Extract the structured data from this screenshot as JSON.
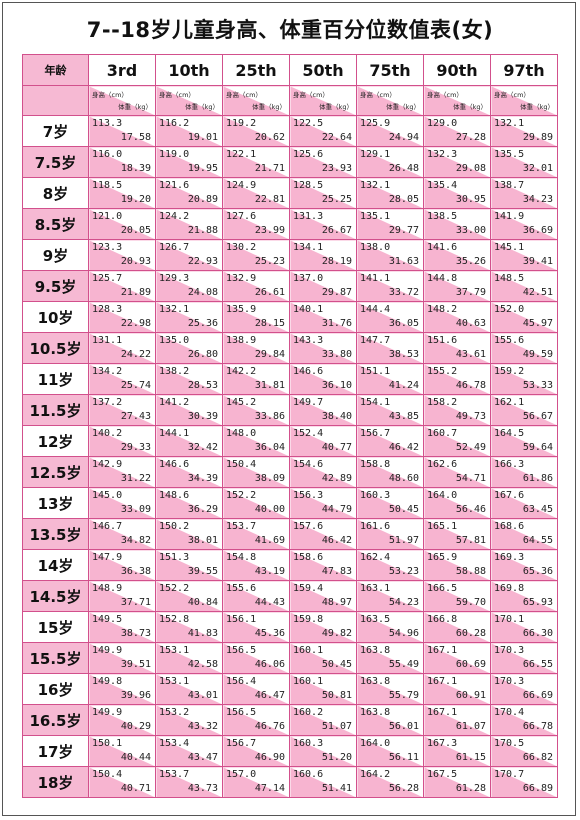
{
  "title": "7--18岁儿童身高、体重百分位数值表(女)",
  "age_header": "年龄",
  "percentiles": [
    "3rd",
    "10th",
    "25th",
    "50th",
    "75th",
    "90th",
    "97th"
  ],
  "sub_header": {
    "height": "身高（cm）",
    "weight": "体重（kg）"
  },
  "rows": [
    {
      "age": "7岁",
      "cells": [
        [
          "113.3",
          "17.58"
        ],
        [
          "116.2",
          "19.01"
        ],
        [
          "119.2",
          "20.62"
        ],
        [
          "122.5",
          "22.64"
        ],
        [
          "125.9",
          "24.94"
        ],
        [
          "129.0",
          "27.28"
        ],
        [
          "132.1",
          "29.89"
        ]
      ]
    },
    {
      "age": "7.5岁",
      "cells": [
        [
          "116.0",
          "18.39"
        ],
        [
          "119.0",
          "19.95"
        ],
        [
          "122.1",
          "21.71"
        ],
        [
          "125.6",
          "23.93"
        ],
        [
          "129.1",
          "26.48"
        ],
        [
          "132.3",
          "29.08"
        ],
        [
          "135.5",
          "32.01"
        ]
      ]
    },
    {
      "age": "8岁",
      "cells": [
        [
          "118.5",
          "19.20"
        ],
        [
          "121.6",
          "20.89"
        ],
        [
          "124.9",
          "22.81"
        ],
        [
          "128.5",
          "25.25"
        ],
        [
          "132.1",
          "28.05"
        ],
        [
          "135.4",
          "30.95"
        ],
        [
          "138.7",
          "34.23"
        ]
      ]
    },
    {
      "age": "8.5岁",
      "cells": [
        [
          "121.0",
          "20.05"
        ],
        [
          "124.2",
          "21.88"
        ],
        [
          "127.6",
          "23.99"
        ],
        [
          "131.3",
          "26.67"
        ],
        [
          "135.1",
          "29.77"
        ],
        [
          "138.5",
          "33.00"
        ],
        [
          "141.9",
          "36.69"
        ]
      ]
    },
    {
      "age": "9岁",
      "cells": [
        [
          "123.3",
          "20.93"
        ],
        [
          "126.7",
          "22.93"
        ],
        [
          "130.2",
          "25.23"
        ],
        [
          "134.1",
          "28.19"
        ],
        [
          "138.0",
          "31.63"
        ],
        [
          "141.6",
          "35.26"
        ],
        [
          "145.1",
          "39.41"
        ]
      ]
    },
    {
      "age": "9.5岁",
      "cells": [
        [
          "125.7",
          "21.89"
        ],
        [
          "129.3",
          "24.08"
        ],
        [
          "132.9",
          "26.61"
        ],
        [
          "137.0",
          "29.87"
        ],
        [
          "141.1",
          "33.72"
        ],
        [
          "144.8",
          "37.79"
        ],
        [
          "148.5",
          "42.51"
        ]
      ]
    },
    {
      "age": "10岁",
      "cells": [
        [
          "128.3",
          "22.98"
        ],
        [
          "132.1",
          "25.36"
        ],
        [
          "135.9",
          "28.15"
        ],
        [
          "140.1",
          "31.76"
        ],
        [
          "144.4",
          "36.05"
        ],
        [
          "148.2",
          "40.63"
        ],
        [
          "152.0",
          "45.97"
        ]
      ]
    },
    {
      "age": "10.5岁",
      "cells": [
        [
          "131.1",
          "24.22"
        ],
        [
          "135.0",
          "26.80"
        ],
        [
          "138.9",
          "29.84"
        ],
        [
          "143.3",
          "33.80"
        ],
        [
          "147.7",
          "38.53"
        ],
        [
          "151.6",
          "43.61"
        ],
        [
          "155.6",
          "49.59"
        ]
      ]
    },
    {
      "age": "11岁",
      "cells": [
        [
          "134.2",
          "25.74"
        ],
        [
          "138.2",
          "28.53"
        ],
        [
          "142.2",
          "31.81"
        ],
        [
          "146.6",
          "36.10"
        ],
        [
          "151.1",
          "41.24"
        ],
        [
          "155.2",
          "46.78"
        ],
        [
          "159.2",
          "53.33"
        ]
      ]
    },
    {
      "age": "11.5岁",
      "cells": [
        [
          "137.2",
          "27.43"
        ],
        [
          "141.2",
          "30.39"
        ],
        [
          "145.2",
          "33.86"
        ],
        [
          "149.7",
          "38.40"
        ],
        [
          "154.1",
          "43.85"
        ],
        [
          "158.2",
          "49.73"
        ],
        [
          "162.1",
          "56.67"
        ]
      ]
    },
    {
      "age": "12岁",
      "cells": [
        [
          "140.2",
          "29.33"
        ],
        [
          "144.1",
          "32.42"
        ],
        [
          "148.0",
          "36.04"
        ],
        [
          "152.4",
          "40.77"
        ],
        [
          "156.7",
          "46.42"
        ],
        [
          "160.7",
          "52.49"
        ],
        [
          "164.5",
          "59.64"
        ]
      ]
    },
    {
      "age": "12.5岁",
      "cells": [
        [
          "142.9",
          "31.22"
        ],
        [
          "146.6",
          "34.39"
        ],
        [
          "150.4",
          "38.09"
        ],
        [
          "154.6",
          "42.89"
        ],
        [
          "158.8",
          "48.60"
        ],
        [
          "162.6",
          "54.71"
        ],
        [
          "166.3",
          "61.86"
        ]
      ]
    },
    {
      "age": "13岁",
      "cells": [
        [
          "145.0",
          "33.09"
        ],
        [
          "148.6",
          "36.29"
        ],
        [
          "152.2",
          "40.00"
        ],
        [
          "156.3",
          "44.79"
        ],
        [
          "160.3",
          "50.45"
        ],
        [
          "164.0",
          "56.46"
        ],
        [
          "167.6",
          "63.45"
        ]
      ]
    },
    {
      "age": "13.5岁",
      "cells": [
        [
          "146.7",
          "34.82"
        ],
        [
          "150.2",
          "38.01"
        ],
        [
          "153.7",
          "41.69"
        ],
        [
          "157.6",
          "46.42"
        ],
        [
          "161.6",
          "51.97"
        ],
        [
          "165.1",
          "57.81"
        ],
        [
          "168.6",
          "64.55"
        ]
      ]
    },
    {
      "age": "14岁",
      "cells": [
        [
          "147.9",
          "36.38"
        ],
        [
          "151.3",
          "39.55"
        ],
        [
          "154.8",
          "43.19"
        ],
        [
          "158.6",
          "47.83"
        ],
        [
          "162.4",
          "53.23"
        ],
        [
          "165.9",
          "58.88"
        ],
        [
          "169.3",
          "65.36"
        ]
      ]
    },
    {
      "age": "14.5岁",
      "cells": [
        [
          "148.9",
          "37.71"
        ],
        [
          "152.2",
          "40.84"
        ],
        [
          "155.6",
          "44.43"
        ],
        [
          "159.4",
          "48.97"
        ],
        [
          "163.1",
          "54.23"
        ],
        [
          "166.5",
          "59.70"
        ],
        [
          "169.8",
          "65.93"
        ]
      ]
    },
    {
      "age": "15岁",
      "cells": [
        [
          "149.5",
          "38.73"
        ],
        [
          "152.8",
          "41.83"
        ],
        [
          "156.1",
          "45.36"
        ],
        [
          "159.8",
          "49.82"
        ],
        [
          "163.5",
          "54.96"
        ],
        [
          "166.8",
          "60.28"
        ],
        [
          "170.1",
          "66.30"
        ]
      ]
    },
    {
      "age": "15.5岁",
      "cells": [
        [
          "149.9",
          "39.51"
        ],
        [
          "153.1",
          "42.58"
        ],
        [
          "156.5",
          "46.06"
        ],
        [
          "160.1",
          "50.45"
        ],
        [
          "163.8",
          "55.49"
        ],
        [
          "167.1",
          "60.69"
        ],
        [
          "170.3",
          "66.55"
        ]
      ]
    },
    {
      "age": "16岁",
      "cells": [
        [
          "149.8",
          "39.96"
        ],
        [
          "153.1",
          "43.01"
        ],
        [
          "156.4",
          "46.47"
        ],
        [
          "160.1",
          "50.81"
        ],
        [
          "163.8",
          "55.79"
        ],
        [
          "167.1",
          "60.91"
        ],
        [
          "170.3",
          "66.69"
        ]
      ]
    },
    {
      "age": "16.5岁",
      "cells": [
        [
          "149.9",
          "40.29"
        ],
        [
          "153.2",
          "43.32"
        ],
        [
          "156.5",
          "46.76"
        ],
        [
          "160.2",
          "51.07"
        ],
        [
          "163.8",
          "56.01"
        ],
        [
          "167.1",
          "61.07"
        ],
        [
          "170.4",
          "66.78"
        ]
      ]
    },
    {
      "age": "17岁",
      "cells": [
        [
          "150.1",
          "40.44"
        ],
        [
          "153.4",
          "43.47"
        ],
        [
          "156.7",
          "46.90"
        ],
        [
          "160.3",
          "51.20"
        ],
        [
          "164.0",
          "56.11"
        ],
        [
          "167.3",
          "61.15"
        ],
        [
          "170.5",
          "66.82"
        ]
      ]
    },
    {
      "age": "18岁",
      "cells": [
        [
          "150.4",
          "40.71"
        ],
        [
          "153.7",
          "43.73"
        ],
        [
          "157.0",
          "47.14"
        ],
        [
          "160.6",
          "51.41"
        ],
        [
          "164.2",
          "56.28"
        ],
        [
          "167.5",
          "61.28"
        ],
        [
          "170.7",
          "66.89"
        ]
      ]
    }
  ]
}
